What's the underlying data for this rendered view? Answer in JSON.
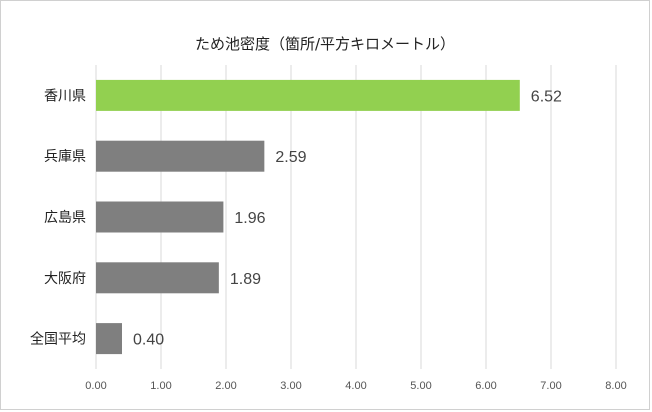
{
  "chart_data": {
    "type": "bar",
    "orientation": "horizontal",
    "title": "ため池密度（箇所/平方キロメートル）",
    "categories": [
      "香川県",
      "兵庫県",
      "広島県",
      "大阪府",
      "全国平均"
    ],
    "values": [
      6.52,
      2.59,
      1.96,
      1.89,
      0.4
    ],
    "value_labels": [
      "6.52",
      "2.59",
      "1.96",
      "1.89",
      "0.40"
    ],
    "xlim": [
      0,
      8
    ],
    "xticks": [
      "0.00",
      "1.00",
      "2.00",
      "3.00",
      "4.00",
      "5.00",
      "6.00",
      "7.00",
      "8.00"
    ],
    "grid": "vertical",
    "colors": {
      "highlight": "#92d050",
      "default": "#7f7f7f",
      "grid": "#d9d9d9"
    },
    "highlight_index": 0
  }
}
